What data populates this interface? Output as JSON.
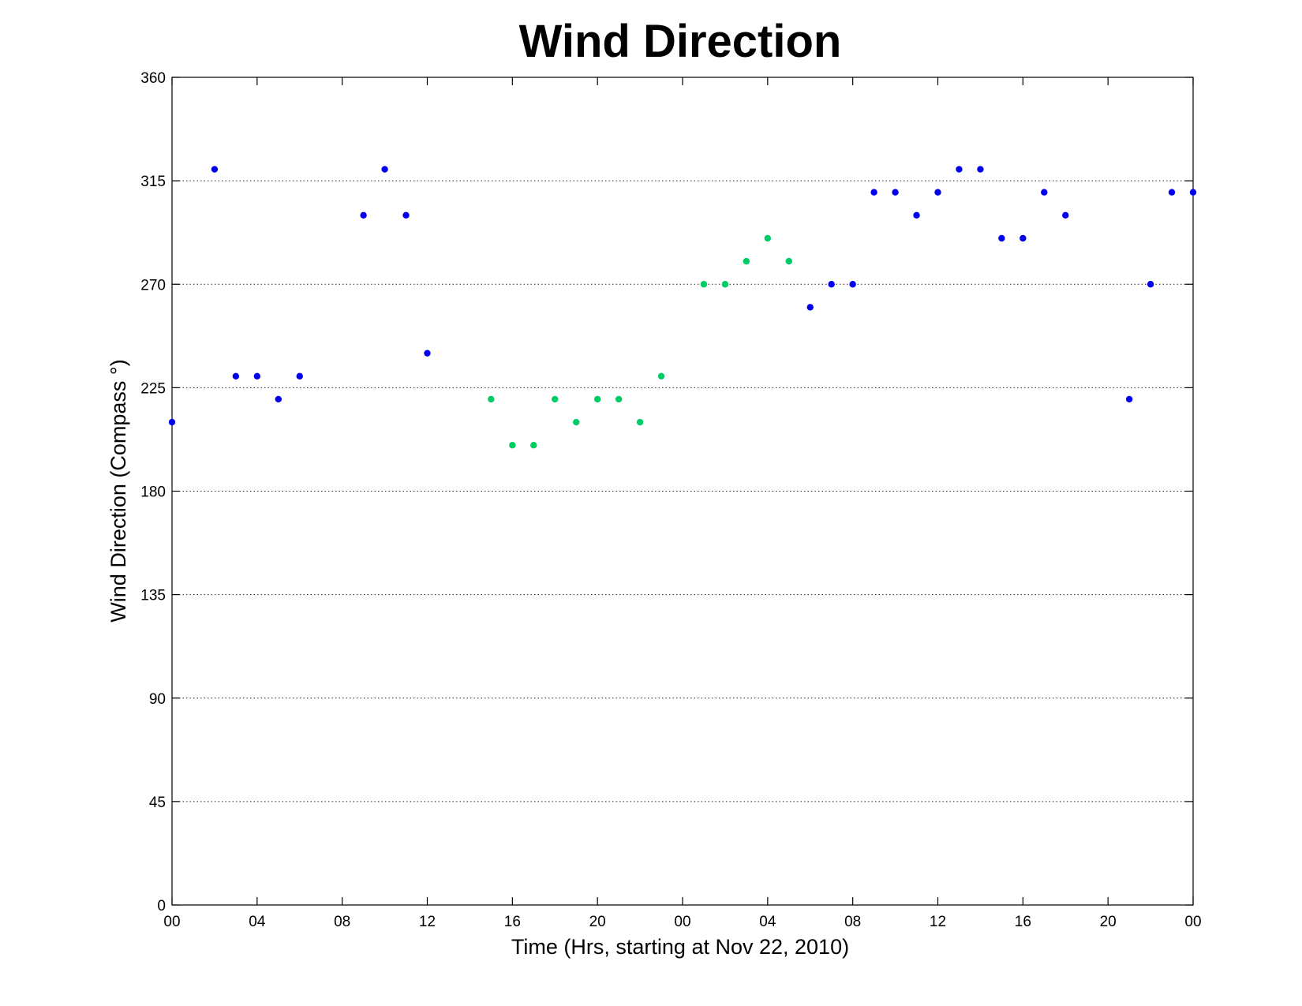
{
  "chart_data": {
    "type": "scatter",
    "title": "Wind Direction",
    "xlabel": "Time (Hrs, starting at Nov 22, 2010)",
    "ylabel": "Wind Direction (Compass  °)",
    "x_ticks": [
      "00",
      "04",
      "08",
      "12",
      "16",
      "20",
      "00",
      "04",
      "08",
      "12",
      "16",
      "20",
      "00"
    ],
    "y_ticks": [
      "0",
      "45",
      "90",
      "135",
      "180",
      "225",
      "270",
      "315",
      "360"
    ],
    "xlim": [
      "2010-11-22 00:00",
      "2010-11-24 00:00"
    ],
    "ylim": [
      0,
      360
    ],
    "grid": "horizontal-dotted",
    "legend": "none",
    "series": [
      {
        "color": "#0000ee",
        "points": [
          {
            "x": "2010-11-22 00:00",
            "y": 210
          },
          {
            "x": "2010-11-22 02:00",
            "y": 320
          },
          {
            "x": "2010-11-22 03:00",
            "y": 230
          },
          {
            "x": "2010-11-22 04:00",
            "y": 230
          },
          {
            "x": "2010-11-22 05:00",
            "y": 220
          },
          {
            "x": "2010-11-22 06:00",
            "y": 230
          },
          {
            "x": "2010-11-22 09:00",
            "y": 300
          },
          {
            "x": "2010-11-22 10:00",
            "y": 320
          },
          {
            "x": "2010-11-22 11:00",
            "y": 300
          },
          {
            "x": "2010-11-22 12:00",
            "y": 240
          },
          {
            "x": "2010-11-23 06:00",
            "y": 260
          },
          {
            "x": "2010-11-23 07:00",
            "y": 270
          },
          {
            "x": "2010-11-23 08:00",
            "y": 270
          },
          {
            "x": "2010-11-23 09:00",
            "y": 310
          },
          {
            "x": "2010-11-23 10:00",
            "y": 310
          },
          {
            "x": "2010-11-23 11:00",
            "y": 300
          },
          {
            "x": "2010-11-23 12:00",
            "y": 310
          },
          {
            "x": "2010-11-23 13:00",
            "y": 320
          },
          {
            "x": "2010-11-23 14:00",
            "y": 320
          },
          {
            "x": "2010-11-23 15:00",
            "y": 290
          },
          {
            "x": "2010-11-23 16:00",
            "y": 290
          },
          {
            "x": "2010-11-23 17:00",
            "y": 310
          },
          {
            "x": "2010-11-23 18:00",
            "y": 300
          },
          {
            "x": "2010-11-23 21:00",
            "y": 220
          },
          {
            "x": "2010-11-23 22:00",
            "y": 270
          },
          {
            "x": "2010-11-23 23:00",
            "y": 310
          },
          {
            "x": "2010-11-24 00:00",
            "y": 310
          }
        ]
      },
      {
        "color": "#00cc66",
        "points": [
          {
            "x": "2010-11-22 15:00",
            "y": 220
          },
          {
            "x": "2010-11-22 16:00",
            "y": 200
          },
          {
            "x": "2010-11-22 17:00",
            "y": 200
          },
          {
            "x": "2010-11-22 18:00",
            "y": 220
          },
          {
            "x": "2010-11-22 19:00",
            "y": 210
          },
          {
            "x": "2010-11-22 20:00",
            "y": 220
          },
          {
            "x": "2010-11-22 21:00",
            "y": 220
          },
          {
            "x": "2010-11-22 22:00",
            "y": 210
          },
          {
            "x": "2010-11-22 23:00",
            "y": 230
          },
          {
            "x": "2010-11-23 01:00",
            "y": 270
          },
          {
            "x": "2010-11-23 02:00",
            "y": 270
          },
          {
            "x": "2010-11-23 03:00",
            "y": 280
          },
          {
            "x": "2010-11-23 04:00",
            "y": 290
          },
          {
            "x": "2010-11-23 05:00",
            "y": 280
          }
        ]
      }
    ]
  }
}
